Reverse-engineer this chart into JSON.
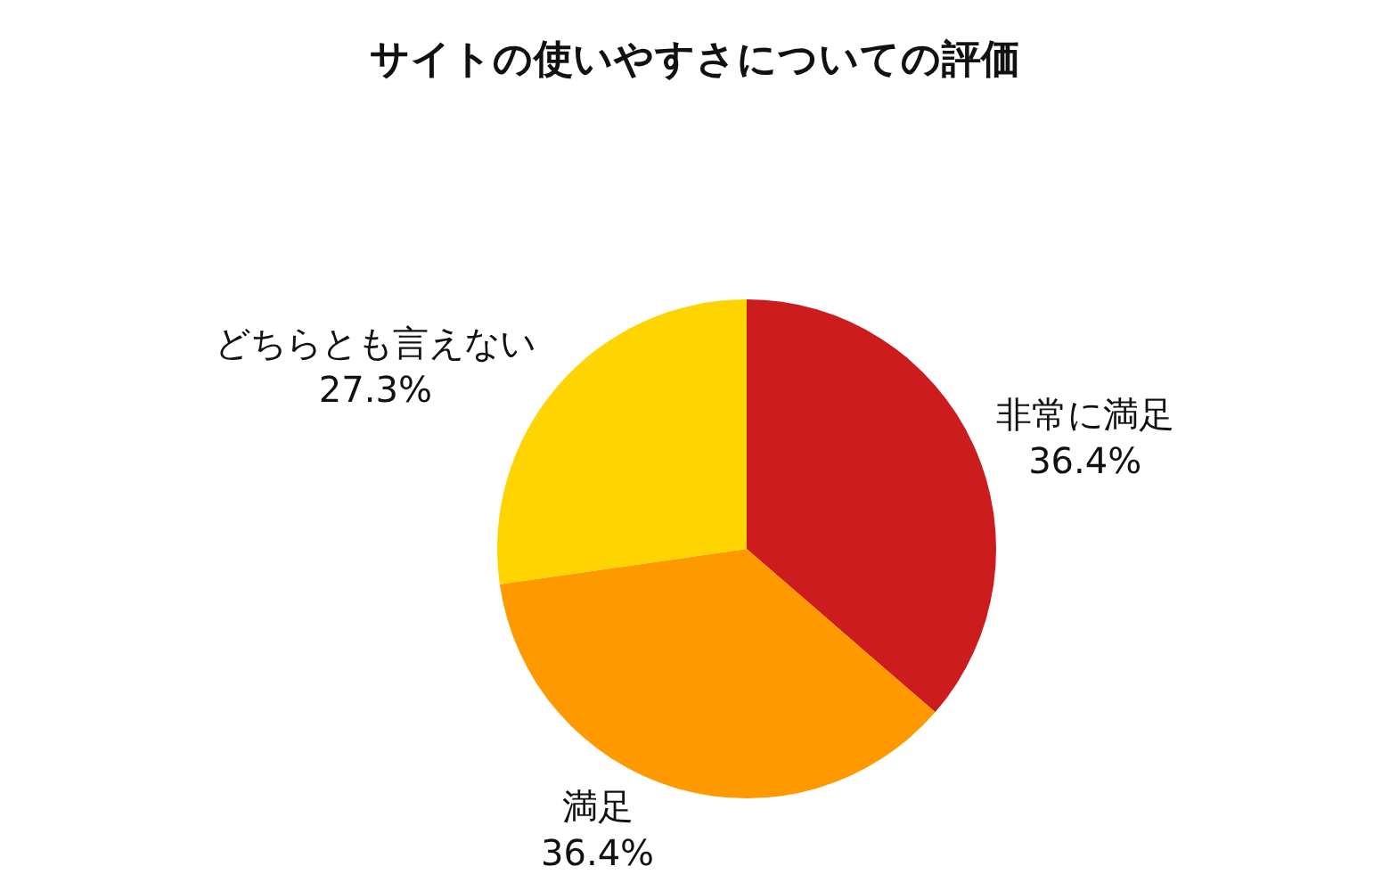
{
  "chart_data": {
    "type": "pie",
    "title": "サイトの使いやすさについての評価",
    "categories": [
      "非常に満足",
      "満足",
      "どちらとも言えない"
    ],
    "values": [
      36.4,
      36.4,
      27.3
    ],
    "value_labels": [
      "36.4%",
      "36.4%",
      "27.3%"
    ],
    "colors": [
      "#cc1c1e",
      "#ff9900",
      "#ffd400"
    ],
    "legend": false
  }
}
